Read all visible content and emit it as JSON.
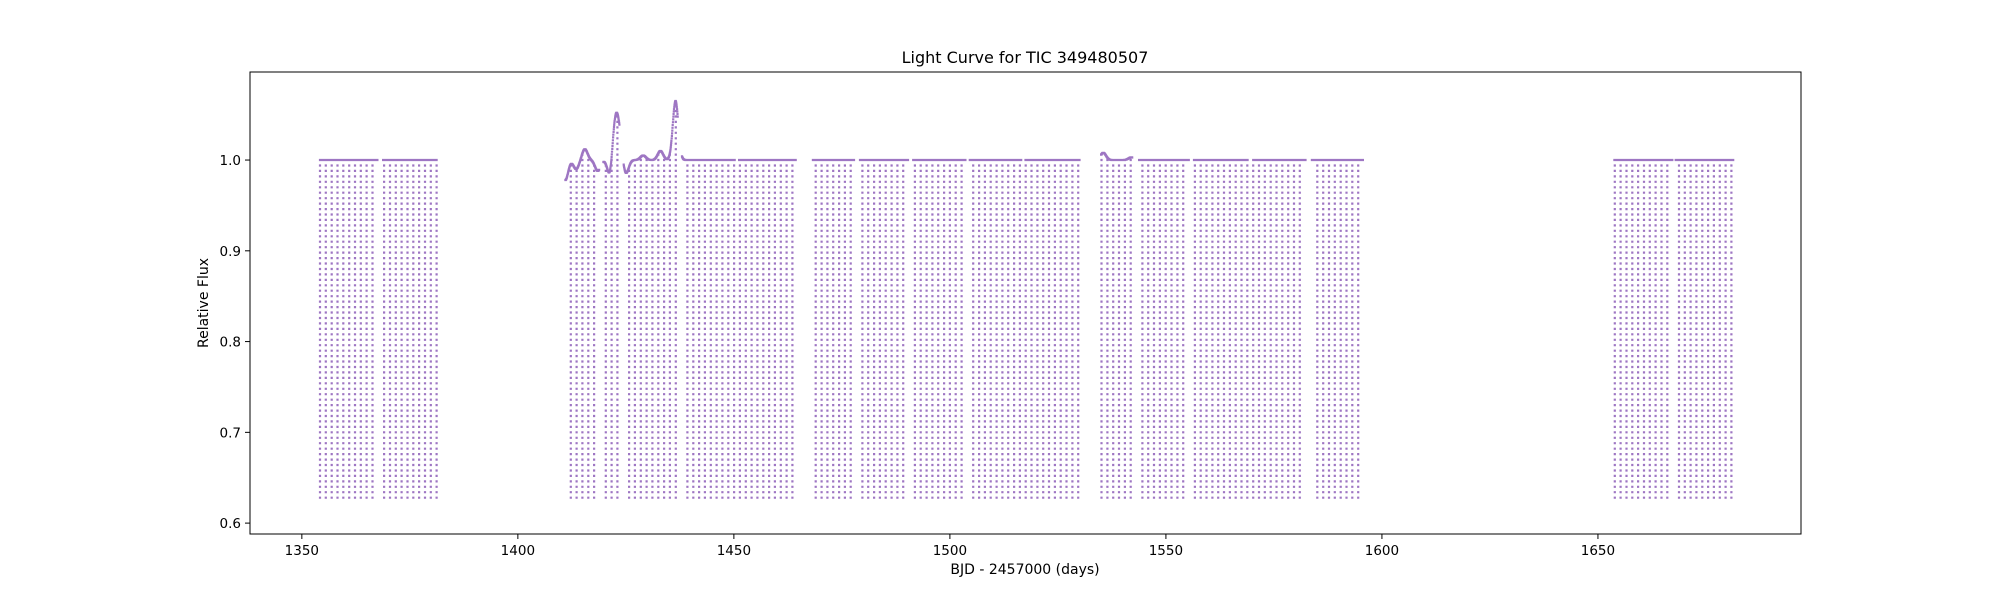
{
  "chart_data": {
    "type": "scatter",
    "title": "Light Curve for TIC 349480507",
    "xlabel": "BJD - 2457000 (days)",
    "ylabel": "Relative Flux",
    "xlim": [
      1338,
      1697
    ],
    "ylim": [
      0.588,
      1.097
    ],
    "xticks": [
      1350,
      1400,
      1450,
      1500,
      1550,
      1600,
      1650
    ],
    "xtick_labels": [
      "1350",
      "1400",
      "1450",
      "1500",
      "1550",
      "1600",
      "1650"
    ],
    "yticks": [
      0.6,
      0.7,
      0.8,
      0.9,
      1.0
    ],
    "ytick_labels": [
      "0.6",
      "0.7",
      "0.8",
      "0.9",
      "1.0"
    ],
    "grid": false,
    "legend": "none",
    "point_color": "#9467bd",
    "eclipse_period_days": 1.35,
    "baseline_flux": 1.0,
    "eclipse_min_flux": 0.628,
    "segments": [
      {
        "start": 1354.2,
        "end": 1367.5
      },
      {
        "start": 1368.8,
        "end": 1381.2
      },
      {
        "start": 1411.0,
        "end": 1418.8
      },
      {
        "start": 1419.8,
        "end": 1423.5
      },
      {
        "start": 1424.5,
        "end": 1437.0
      },
      {
        "start": 1438.0,
        "end": 1450.2
      },
      {
        "start": 1451.2,
        "end": 1464.3
      },
      {
        "start": 1468.3,
        "end": 1477.8
      },
      {
        "start": 1479.2,
        "end": 1490.3
      },
      {
        "start": 1491.5,
        "end": 1503.6
      },
      {
        "start": 1504.6,
        "end": 1516.5
      },
      {
        "start": 1517.5,
        "end": 1530.0
      },
      {
        "start": 1535.0,
        "end": 1542.2
      },
      {
        "start": 1543.8,
        "end": 1555.3
      },
      {
        "start": 1556.5,
        "end": 1568.9
      },
      {
        "start": 1570.2,
        "end": 1582.3
      },
      {
        "start": 1583.8,
        "end": 1595.6
      },
      {
        "start": 1653.8,
        "end": 1667.2
      },
      {
        "start": 1668.0,
        "end": 1681.3
      }
    ],
    "baseline_deviations": [
      {
        "x": 1411.0,
        "y": 0.978
      },
      {
        "x": 1413.5,
        "y": 0.99
      },
      {
        "x": 1415.5,
        "y": 1.012
      },
      {
        "x": 1418.5,
        "y": 0.988
      },
      {
        "x": 1421.5,
        "y": 0.975
      },
      {
        "x": 1422.3,
        "y": 1.04
      },
      {
        "x": 1423.3,
        "y": 1.035
      },
      {
        "x": 1425.0,
        "y": 0.985
      },
      {
        "x": 1429.0,
        "y": 1.005
      },
      {
        "x": 1433.0,
        "y": 1.01
      },
      {
        "x": 1436.5,
        "y": 1.065
      },
      {
        "x": 1438.0,
        "y": 1.0
      },
      {
        "x": 1535.5,
        "y": 1.008
      },
      {
        "x": 1542.0,
        "y": 1.003
      }
    ]
  }
}
